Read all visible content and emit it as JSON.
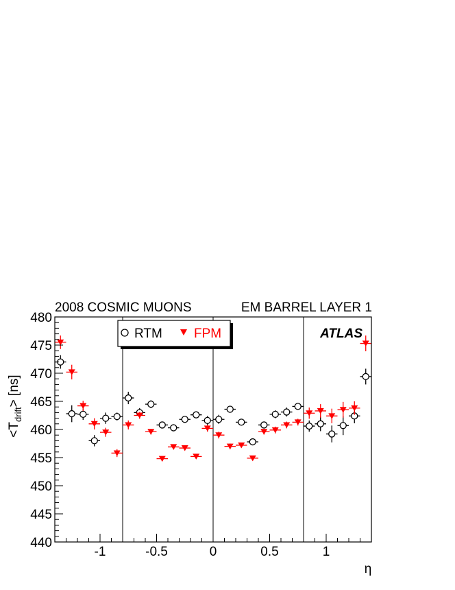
{
  "chart_data": {
    "type": "scatter",
    "title_left": "2008 COSMIC MUONS",
    "title_right": "EM BARREL LAYER 1",
    "watermark": "ATLAS",
    "xlabel": "η",
    "ylabel_prefix": "<T",
    "ylabel_sub": "drift",
    "ylabel_suffix": "> [ns]",
    "xlim": [
      -1.4,
      1.4
    ],
    "ylim": [
      440,
      480
    ],
    "x_ticks": [
      {
        "value": -1,
        "label": "-1"
      },
      {
        "value": -0.5,
        "label": "-0.5"
      },
      {
        "value": 0,
        "label": "0"
      },
      {
        "value": 0.5,
        "label": "0.5"
      },
      {
        "value": 1,
        "label": "1"
      }
    ],
    "y_ticks": [
      {
        "value": 440,
        "label": "440"
      },
      {
        "value": 445,
        "label": "445"
      },
      {
        "value": 450,
        "label": "450"
      },
      {
        "value": 455,
        "label": "455"
      },
      {
        "value": 460,
        "label": "460"
      },
      {
        "value": 465,
        "label": "465"
      },
      {
        "value": 470,
        "label": "470"
      },
      {
        "value": 475,
        "label": "475"
      },
      {
        "value": 480,
        "label": "480"
      }
    ],
    "vertical_lines": [
      -0.8,
      0,
      0.8
    ],
    "legend_position": "top-left",
    "series": [
      {
        "name": "RTM",
        "marker": "open-circle",
        "color": "#000000",
        "x": [
          -1.35,
          -1.25,
          -1.15,
          -1.05,
          -0.95,
          -0.85,
          -0.75,
          -0.65,
          -0.55,
          -0.45,
          -0.35,
          -0.25,
          -0.15,
          -0.05,
          0.05,
          0.15,
          0.25,
          0.35,
          0.45,
          0.55,
          0.65,
          0.75,
          0.85,
          0.95,
          1.05,
          1.15,
          1.25,
          1.35
        ],
        "y": [
          472.0,
          462.8,
          462.7,
          458.0,
          462.0,
          462.3,
          465.6,
          463.0,
          464.5,
          460.8,
          460.3,
          461.8,
          462.6,
          461.6,
          461.8,
          463.6,
          461.3,
          457.8,
          460.8,
          462.7,
          463.1,
          464.1,
          460.6,
          461.0,
          459.2,
          460.7,
          462.4,
          469.4
        ],
        "err": [
          1.2,
          1.5,
          1.0,
          1.0,
          1.0,
          0.7,
          1.1,
          0.8,
          0.7,
          0.5,
          0.6,
          0.5,
          0.5,
          0.8,
          0.8,
          0.6,
          0.5,
          0.5,
          0.6,
          0.7,
          0.8,
          0.6,
          1.0,
          1.3,
          1.5,
          1.7,
          1.3,
          1.4
        ]
      },
      {
        "name": "FPM",
        "marker": "filled-triangle-down",
        "color": "#ff0000",
        "x": [
          -1.35,
          -1.25,
          -1.15,
          -1.05,
          -0.95,
          -0.85,
          -0.75,
          -0.65,
          -0.55,
          -0.45,
          -0.35,
          -0.25,
          -0.15,
          -0.05,
          0.05,
          0.15,
          0.25,
          0.35,
          0.45,
          0.55,
          0.65,
          0.75,
          0.85,
          0.95,
          1.05,
          1.15,
          1.25,
          1.35
        ],
        "y": [
          475.5,
          470.2,
          464.2,
          461.0,
          459.5,
          455.8,
          460.8,
          462.5,
          459.6,
          454.8,
          456.9,
          456.7,
          455.2,
          460.2,
          459.0,
          457.0,
          457.2,
          454.9,
          459.6,
          459.9,
          460.8,
          461.3,
          462.9,
          463.3,
          462.4,
          463.5,
          463.8,
          475.3
        ],
        "err": [
          1.2,
          1.3,
          0.9,
          1.0,
          0.8,
          0.7,
          0.8,
          0.6,
          0.5,
          0.4,
          0.4,
          0.4,
          0.4,
          0.6,
          0.6,
          0.5,
          0.4,
          0.4,
          0.5,
          0.6,
          0.6,
          0.6,
          1.0,
          1.2,
          1.3,
          1.4,
          1.2,
          1.4
        ]
      }
    ]
  }
}
